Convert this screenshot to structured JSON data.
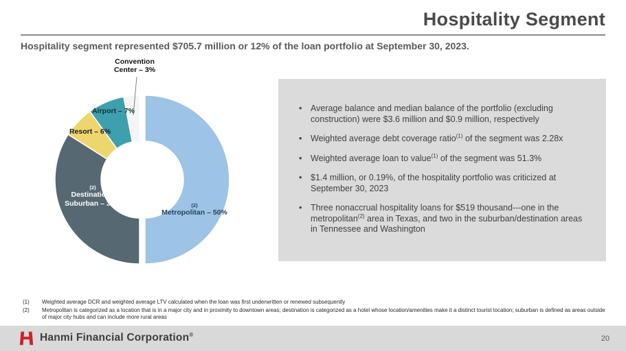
{
  "slide": {
    "title": "Hospitality Segment",
    "subtitle": "Hospitality segment represented $705.7 million or 12% of the loan portfolio at September 30, 2023.",
    "page_number": "20",
    "footer_brand": "Hanmi Financial Corporation",
    "footer_reg_mark": "®"
  },
  "chart_data": {
    "type": "pie",
    "donut": true,
    "unit": "%",
    "legend_position": "data-labels",
    "segments": [
      {
        "label": "Metropolitan",
        "value": 50,
        "display": "Metropolitan – 50%",
        "sup": "(2)",
        "color": "#9DC3E6",
        "explode": 8
      },
      {
        "label": "Destination / Suburban",
        "value": 34,
        "display": "Destination / Suburban – 34%",
        "sup": "(2)",
        "color": "#566872"
      },
      {
        "label": "Resort",
        "value": 6,
        "display": "Resort – 6%",
        "sup": "",
        "color": "#EDD66E"
      },
      {
        "label": "Airport",
        "value": 7,
        "display": "Airport – 7%",
        "sup": "",
        "color": "#3E9FAE"
      },
      {
        "label": "Convention Center",
        "value": 3,
        "display": "Convention Center – 3%",
        "sup": "",
        "color": "#F5F5F5"
      }
    ]
  },
  "callout_box": {
    "bullet_char": "•",
    "bullets": [
      {
        "parts": [
          {
            "t": "Average balance and median balance of the portfolio (excluding construction) were $3.6 million and $0.9 million, respectively"
          }
        ]
      },
      {
        "parts": [
          {
            "t": "Weighted average debt coverage ratio"
          },
          {
            "s": "(1)"
          },
          {
            "t": " of the segment was 2.28x"
          }
        ]
      },
      {
        "parts": [
          {
            "t": "Weighted average loan to value"
          },
          {
            "s": "(1)"
          },
          {
            "t": " of the segment was 51.3%"
          }
        ]
      },
      {
        "parts": [
          {
            "t": "$1.4 million, or 0.19%, of the hospitality portfolio was criticized at September 30, 2023"
          }
        ]
      },
      {
        "parts": [
          {
            "t": "Three nonaccrual hospitality loans for $519 thousand---one in the metropolitan"
          },
          {
            "s": "(2)"
          },
          {
            "t": " area in Texas, and two in the suburban/destination areas in Tennessee and Washington"
          }
        ]
      }
    ]
  },
  "footnotes": [
    {
      "num": "(1)",
      "text": "Weighted average DCR and weighted average LTV calculated when the loan was first underwritten or renewed subsequently"
    },
    {
      "num": "(2)",
      "text": "Metropolitan is categorized as a location that is in a major city and in proximity to downtown areas; destination is categorized as a hotel whose location/amenities make it a distinct tourist location; suburban is defined as areas outside of major city hubs and can include more rural areas"
    }
  ]
}
